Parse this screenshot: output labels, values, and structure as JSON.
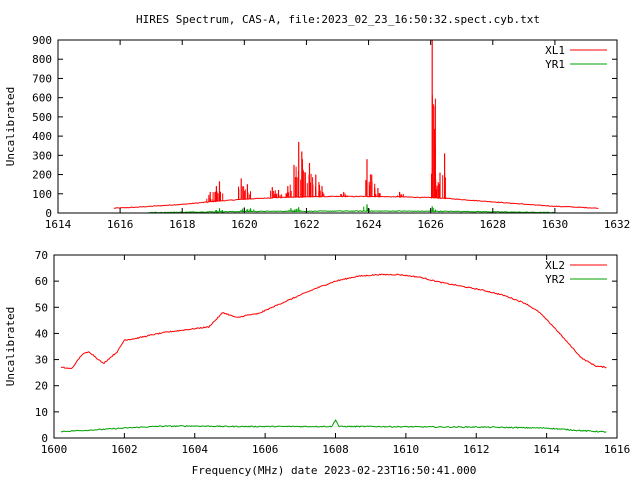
{
  "figure": {
    "title": "HIRES Spectrum, CAS-A, file:2023_02_23_16:50:32.spect.cyb.txt",
    "xlabel": "Frequency(MHz) date 2023-02-23T16:50:41.000"
  },
  "colors": {
    "red": "#ff0000",
    "green": "#00a000",
    "axis": "#000000",
    "background": "#ffffff"
  },
  "chart_data": [
    {
      "type": "line",
      "title": "HIRES Spectrum, CAS-A, file:2023_02_23_16:50:32.spect.cyb.txt",
      "xlabel": "",
      "ylabel": "Uncalibrated",
      "xlim": [
        1614,
        1632
      ],
      "ylim": [
        0,
        900
      ],
      "x_ticks": [
        1614,
        1616,
        1618,
        1620,
        1622,
        1624,
        1626,
        1628,
        1630,
        1632
      ],
      "y_ticks": [
        0,
        100,
        200,
        300,
        400,
        500,
        600,
        700,
        800,
        900
      ],
      "grid": false,
      "legend_position": "top-right",
      "series": [
        {
          "name": "XL1",
          "color": "#ff0000",
          "x": [
            1615.8,
            1616.5,
            1617.0,
            1617.5,
            1618.0,
            1618.5,
            1619.0,
            1619.5,
            1620.0,
            1620.5,
            1621.0,
            1621.5,
            1622.0,
            1622.5,
            1623.0,
            1623.5,
            1624.0,
            1624.5,
            1625.0,
            1625.5,
            1626.0,
            1626.5,
            1627.0,
            1627.5,
            1628.0,
            1628.5,
            1629.0,
            1629.5,
            1630.0,
            1630.5,
            1631.0,
            1631.4
          ],
          "values": [
            25,
            30,
            35,
            40,
            45,
            52,
            60,
            66,
            72,
            76,
            80,
            82,
            84,
            85,
            86,
            86,
            86,
            85,
            84,
            82,
            80,
            76,
            70,
            64,
            58,
            52,
            46,
            40,
            35,
            32,
            28,
            25
          ],
          "peaks": [
            {
              "x": 1618.9,
              "y": 110
            },
            {
              "x": 1619.1,
              "y": 140
            },
            {
              "x": 1619.2,
              "y": 165
            },
            {
              "x": 1619.9,
              "y": 180
            },
            {
              "x": 1620.1,
              "y": 150
            },
            {
              "x": 1620.9,
              "y": 135
            },
            {
              "x": 1621.1,
              "y": 120
            },
            {
              "x": 1621.4,
              "y": 140
            },
            {
              "x": 1621.6,
              "y": 250
            },
            {
              "x": 1621.75,
              "y": 370
            },
            {
              "x": 1621.85,
              "y": 320
            },
            {
              "x": 1622.1,
              "y": 260
            },
            {
              "x": 1622.3,
              "y": 200
            },
            {
              "x": 1622.5,
              "y": 140
            },
            {
              "x": 1623.2,
              "y": 110
            },
            {
              "x": 1623.95,
              "y": 280
            },
            {
              "x": 1624.1,
              "y": 200
            },
            {
              "x": 1624.3,
              "y": 130
            },
            {
              "x": 1625.0,
              "y": 110
            },
            {
              "x": 1626.05,
              "y": 900
            },
            {
              "x": 1626.15,
              "y": 350
            },
            {
              "x": 1626.3,
              "y": 210
            },
            {
              "x": 1626.45,
              "y": 310
            }
          ]
        },
        {
          "name": "YR1",
          "color": "#00a000",
          "x": [
            1616.9,
            1618.0,
            1619.0,
            1620.0,
            1621.0,
            1622.0,
            1623.0,
            1624.0,
            1625.0,
            1626.0,
            1627.0,
            1628.0,
            1629.0,
            1630.0
          ],
          "values": [
            2,
            4,
            6,
            8,
            9,
            9,
            10,
            10,
            10,
            9,
            8,
            6,
            4,
            2
          ],
          "peaks": [
            {
              "x": 1619.2,
              "y": 25
            },
            {
              "x": 1620.0,
              "y": 30
            },
            {
              "x": 1620.2,
              "y": 25
            },
            {
              "x": 1621.5,
              "y": 25
            },
            {
              "x": 1621.75,
              "y": 30
            },
            {
              "x": 1623.95,
              "y": 45
            },
            {
              "x": 1626.05,
              "y": 35
            }
          ]
        }
      ]
    },
    {
      "type": "line",
      "title": "",
      "xlabel": "Frequency(MHz) date 2023-02-23T16:50:41.000",
      "ylabel": "Uncalibrated",
      "xlim": [
        1600,
        1616
      ],
      "ylim": [
        0,
        70
      ],
      "x_ticks": [
        1600,
        1602,
        1604,
        1606,
        1608,
        1610,
        1612,
        1614,
        1616
      ],
      "y_ticks": [
        0,
        10,
        20,
        30,
        40,
        50,
        60,
        70
      ],
      "grid": false,
      "legend_position": "top-right",
      "series": [
        {
          "name": "XL2",
          "color": "#ff0000",
          "x": [
            1600.2,
            1600.5,
            1600.8,
            1601.0,
            1601.4,
            1601.8,
            1602.0,
            1602.3,
            1602.8,
            1603.2,
            1603.8,
            1604.4,
            1604.8,
            1605.0,
            1605.2,
            1605.5,
            1605.8,
            1606.2,
            1606.8,
            1607.4,
            1608.0,
            1608.6,
            1609.2,
            1609.8,
            1610.4,
            1611.0,
            1611.6,
            1612.2,
            1612.8,
            1613.4,
            1613.8,
            1614.2,
            1614.6,
            1615.0,
            1615.4,
            1615.7
          ],
          "values": [
            27,
            26.5,
            32,
            33,
            28.5,
            33,
            37.5,
            38,
            39.5,
            40.5,
            41.5,
            42.5,
            48,
            47,
            46,
            47,
            47.5,
            50,
            53.5,
            57,
            60,
            61.8,
            62.5,
            62.5,
            61.5,
            59.5,
            58,
            56.5,
            54.5,
            51.5,
            48,
            42.5,
            36.5,
            30.5,
            27.5,
            27
          ]
        },
        {
          "name": "YR2",
          "color": "#00a000",
          "x": [
            1600.2,
            1601.0,
            1602.0,
            1603.0,
            1604.0,
            1605.0,
            1606.0,
            1607.0,
            1607.9,
            1608.0,
            1608.1,
            1609.0,
            1610.0,
            1611.0,
            1612.0,
            1613.0,
            1614.0,
            1614.6,
            1615.0,
            1615.7
          ],
          "values": [
            2.5,
            3,
            3.8,
            4.5,
            4.6,
            4.4,
            4.4,
            4.4,
            4.4,
            7,
            4.4,
            4.4,
            4.3,
            4.2,
            4.2,
            4.0,
            3.8,
            3.2,
            2.8,
            2.3
          ]
        }
      ]
    }
  ]
}
